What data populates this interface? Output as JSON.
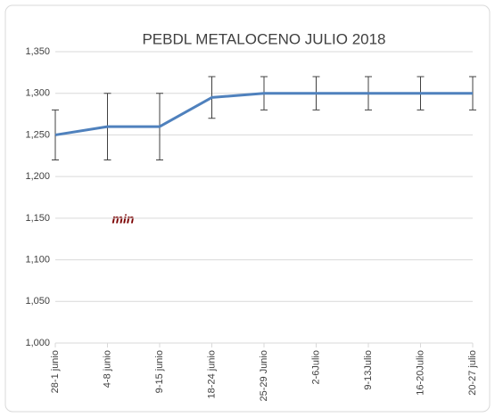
{
  "chart_data": {
    "type": "line",
    "title": "PEBDL METALOCENO JULIO 2018",
    "categories": [
      "28-1 junio",
      "4-8 junio",
      "9-15 junio",
      "18-24 junio",
      "25-29 Junio",
      "2-6Julio",
      "9-13Julio",
      "16-20Julio",
      "20-27 julio"
    ],
    "series": [
      {
        "color": "#4f81bd",
        "values": [
          1250,
          1260,
          1260,
          1295,
          1300,
          1300,
          1300,
          1300,
          1300
        ],
        "errors": [
          30,
          40,
          40,
          25,
          20,
          20,
          20,
          20,
          20
        ]
      }
    ],
    "ylim": [
      1000,
      1350
    ],
    "yticks": [
      {
        "value": 1000,
        "label": "1,000"
      },
      {
        "value": 1050,
        "label": "1,050"
      },
      {
        "value": 1100,
        "label": "1,100"
      },
      {
        "value": 1150,
        "label": "1,150"
      },
      {
        "value": 1200,
        "label": "1,200"
      },
      {
        "value": 1250,
        "label": "1,250"
      },
      {
        "value": 1300,
        "label": "1,300"
      },
      {
        "value": 1350,
        "label": "1,350"
      }
    ],
    "grid": true,
    "annotation": "min"
  }
}
